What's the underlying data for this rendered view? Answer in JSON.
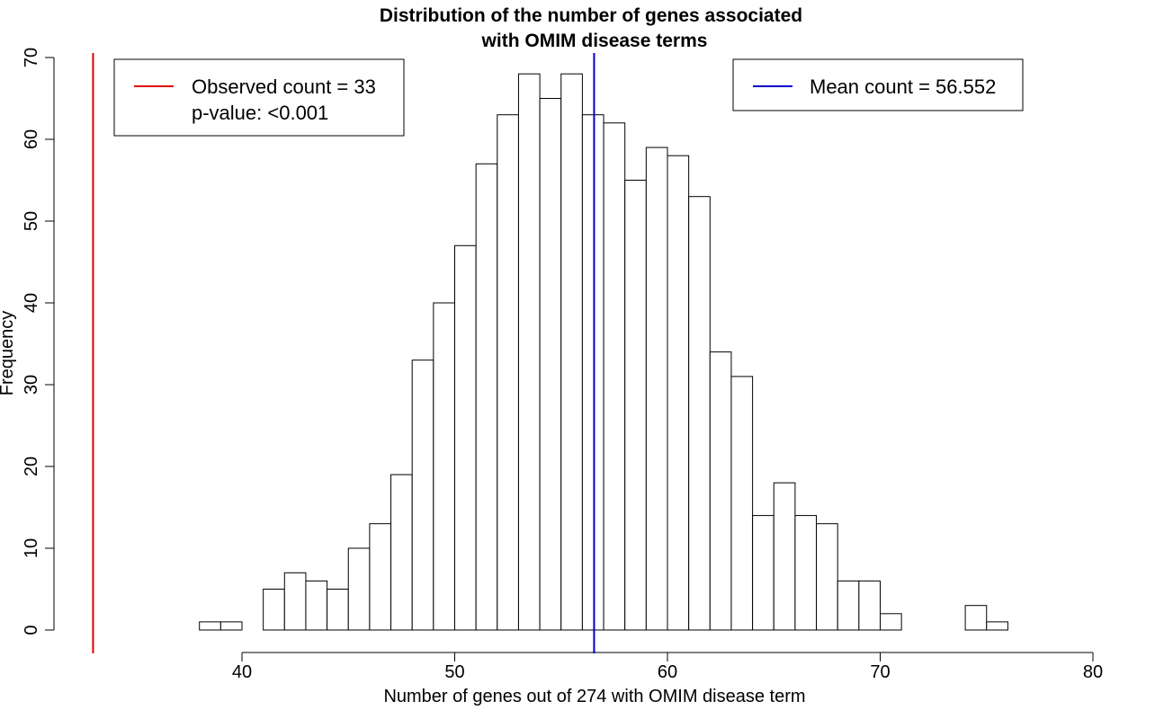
{
  "chart_data": {
    "type": "bar",
    "title_lines": [
      "Distribution of the number of genes associated",
      "with OMIM disease terms"
    ],
    "xlabel": "Number of genes out of 274 with OMIM disease term",
    "ylabel": "Frequency",
    "xlim": [
      33,
      80
    ],
    "ylim": [
      0,
      70
    ],
    "x_ticks": [
      40,
      50,
      60,
      70,
      80
    ],
    "y_ticks": [
      0,
      10,
      20,
      30,
      40,
      50,
      60,
      70
    ],
    "bin_width": 1,
    "bins": [
      {
        "x0": 38,
        "count": 1
      },
      {
        "x0": 39,
        "count": 1
      },
      {
        "x0": 40,
        "count": 0
      },
      {
        "x0": 41,
        "count": 5
      },
      {
        "x0": 42,
        "count": 7
      },
      {
        "x0": 43,
        "count": 6
      },
      {
        "x0": 44,
        "count": 5
      },
      {
        "x0": 45,
        "count": 10
      },
      {
        "x0": 46,
        "count": 13
      },
      {
        "x0": 47,
        "count": 19
      },
      {
        "x0": 48,
        "count": 33
      },
      {
        "x0": 49,
        "count": 40
      },
      {
        "x0": 50,
        "count": 47
      },
      {
        "x0": 51,
        "count": 57
      },
      {
        "x0": 52,
        "count": 63
      },
      {
        "x0": 53,
        "count": 68
      },
      {
        "x0": 54,
        "count": 65
      },
      {
        "x0": 55,
        "count": 68
      },
      {
        "x0": 56,
        "count": 63
      },
      {
        "x0": 57,
        "count": 62
      },
      {
        "x0": 58,
        "count": 55
      },
      {
        "x0": 59,
        "count": 59
      },
      {
        "x0": 60,
        "count": 58
      },
      {
        "x0": 61,
        "count": 53
      },
      {
        "x0": 62,
        "count": 34
      },
      {
        "x0": 63,
        "count": 31
      },
      {
        "x0": 64,
        "count": 14
      },
      {
        "x0": 65,
        "count": 18
      },
      {
        "x0": 66,
        "count": 14
      },
      {
        "x0": 67,
        "count": 13
      },
      {
        "x0": 68,
        "count": 6
      },
      {
        "x0": 69,
        "count": 6
      },
      {
        "x0": 70,
        "count": 2
      },
      {
        "x0": 71,
        "count": 0
      },
      {
        "x0": 72,
        "count": 0
      },
      {
        "x0": 73,
        "count": 0
      },
      {
        "x0": 74,
        "count": 3
      },
      {
        "x0": 75,
        "count": 1
      }
    ],
    "observed": {
      "value": 33,
      "color": "#e00000"
    },
    "mean": {
      "value": 56.552,
      "color": "#0000cc"
    },
    "bar_fill": "#ffffff",
    "bar_stroke": "#000000",
    "grid": false,
    "legends": [
      {
        "position": "top-left",
        "color": "#e00000",
        "lines": [
          "Observed count = 33",
          "p-value: <0.001"
        ]
      },
      {
        "position": "top-right",
        "color": "#0000cc",
        "lines": [
          "Mean count = 56.552"
        ]
      }
    ]
  }
}
